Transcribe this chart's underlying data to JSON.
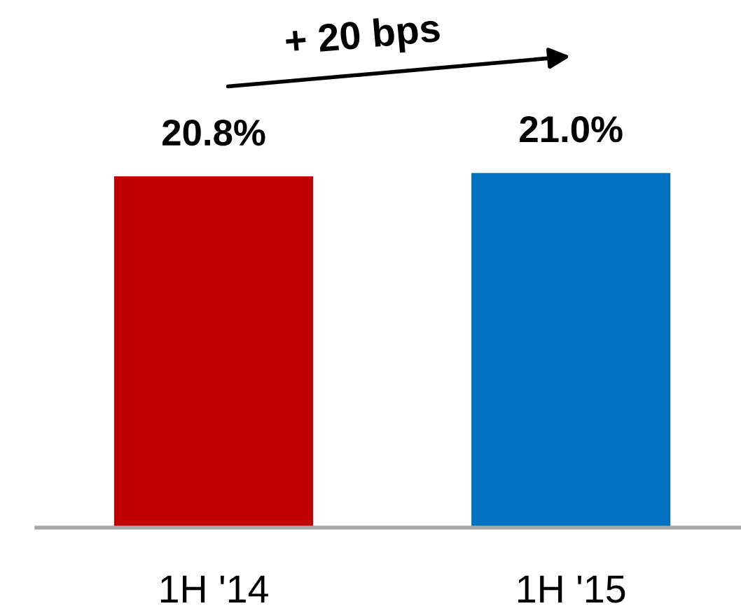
{
  "chart_data": {
    "type": "bar",
    "categories": [
      "1H '14",
      "1H '15"
    ],
    "values": [
      20.8,
      21.0
    ],
    "colors": [
      "#c00000",
      "#0070c0"
    ],
    "value_labels": [
      "20.8%",
      "21.0%"
    ],
    "annotations": [
      "+ 20 bps"
    ]
  }
}
